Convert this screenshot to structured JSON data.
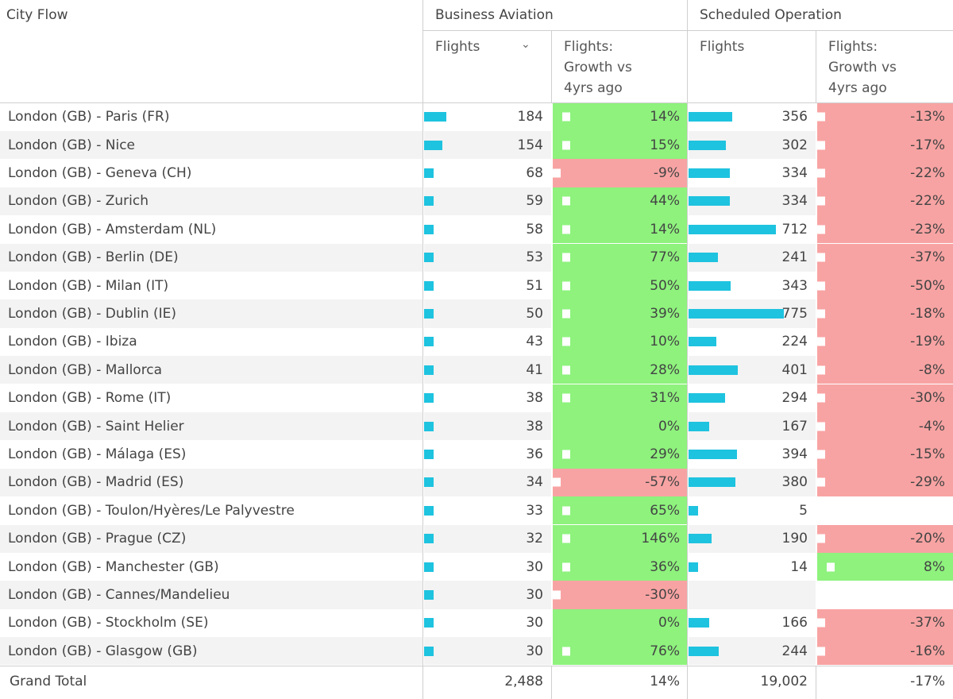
{
  "headers": {
    "city_flow": "City Flow",
    "business_aviation": "Business Aviation",
    "scheduled_operation": "Scheduled Operation",
    "ba_flights": "Flights",
    "ba_growth": "Flights:\nGrowth vs\n4yrs ago",
    "so_flights": "Flights",
    "so_growth": "Flights:\nGrowth vs\n4yrs ago"
  },
  "sort_icon": "chevron-down-icon",
  "colors": {
    "bar": "#1ec3df",
    "positive": "#8ef27d",
    "negative": "#f8a3a3"
  },
  "rows": [
    {
      "city": "London (GB) - Paris (FR)",
      "ba_flights": "184",
      "ba_value": 184,
      "ba_growth": "14%",
      "ba_sign": "pos",
      "so_flights": "356",
      "so_value": 356,
      "so_growth": "-13%",
      "so_sign": "neg"
    },
    {
      "city": "London (GB) - Nice",
      "ba_flights": "154",
      "ba_value": 154,
      "ba_growth": "15%",
      "ba_sign": "pos",
      "so_flights": "302",
      "so_value": 302,
      "so_growth": "-17%",
      "so_sign": "neg"
    },
    {
      "city": "London (GB) - Geneva (CH)",
      "ba_flights": "68",
      "ba_value": 68,
      "ba_growth": "-9%",
      "ba_sign": "neg",
      "so_flights": "334",
      "so_value": 334,
      "so_growth": "-22%",
      "so_sign": "neg"
    },
    {
      "city": "London (GB) - Zurich",
      "ba_flights": "59",
      "ba_value": 59,
      "ba_growth": "44%",
      "ba_sign": "pos",
      "so_flights": "334",
      "so_value": 334,
      "so_growth": "-22%",
      "so_sign": "neg"
    },
    {
      "city": "London (GB) - Amsterdam (NL)",
      "ba_flights": "58",
      "ba_value": 58,
      "ba_growth": "14%",
      "ba_sign": "pos",
      "so_flights": "712",
      "so_value": 712,
      "so_growth": "-23%",
      "so_sign": "neg"
    },
    {
      "city": "London (GB) - Berlin (DE)",
      "ba_flights": "53",
      "ba_value": 53,
      "ba_growth": "77%",
      "ba_sign": "pos",
      "so_flights": "241",
      "so_value": 241,
      "so_growth": "-37%",
      "so_sign": "neg"
    },
    {
      "city": "London (GB) - Milan (IT)",
      "ba_flights": "51",
      "ba_value": 51,
      "ba_growth": "50%",
      "ba_sign": "pos",
      "so_flights": "343",
      "so_value": 343,
      "so_growth": "-50%",
      "so_sign": "neg"
    },
    {
      "city": "London (GB) - Dublin (IE)",
      "ba_flights": "50",
      "ba_value": 50,
      "ba_growth": "39%",
      "ba_sign": "pos",
      "so_flights": "775",
      "so_value": 775,
      "so_growth": "-18%",
      "so_sign": "neg"
    },
    {
      "city": "London (GB) - Ibiza",
      "ba_flights": "43",
      "ba_value": 43,
      "ba_growth": "10%",
      "ba_sign": "pos",
      "so_flights": "224",
      "so_value": 224,
      "so_growth": "-19%",
      "so_sign": "neg"
    },
    {
      "city": "London (GB) - Mallorca",
      "ba_flights": "41",
      "ba_value": 41,
      "ba_growth": "28%",
      "ba_sign": "pos",
      "so_flights": "401",
      "so_value": 401,
      "so_growth": "-8%",
      "so_sign": "neg"
    },
    {
      "city": "London (GB) - Rome (IT)",
      "ba_flights": "38",
      "ba_value": 38,
      "ba_growth": "31%",
      "ba_sign": "pos",
      "so_flights": "294",
      "so_value": 294,
      "so_growth": "-30%",
      "so_sign": "neg"
    },
    {
      "city": "London (GB) - Saint Helier",
      "ba_flights": "38",
      "ba_value": 38,
      "ba_growth": "0%",
      "ba_sign": "pos",
      "so_flights": "167",
      "so_value": 167,
      "so_growth": "-4%",
      "so_sign": "neg"
    },
    {
      "city": "London (GB) - Málaga (ES)",
      "ba_flights": "36",
      "ba_value": 36,
      "ba_growth": "29%",
      "ba_sign": "pos",
      "so_flights": "394",
      "so_value": 394,
      "so_growth": "-15%",
      "so_sign": "neg"
    },
    {
      "city": "London (GB) - Madrid (ES)",
      "ba_flights": "34",
      "ba_value": 34,
      "ba_growth": "-57%",
      "ba_sign": "neg",
      "so_flights": "380",
      "so_value": 380,
      "so_growth": "-29%",
      "so_sign": "neg"
    },
    {
      "city": "London (GB) - Toulon/Hyères/Le Palyvestre",
      "ba_flights": "33",
      "ba_value": 33,
      "ba_growth": "65%",
      "ba_sign": "pos",
      "so_flights": "5",
      "so_value": 5,
      "so_growth": "",
      "so_sign": "none"
    },
    {
      "city": "London (GB) - Prague (CZ)",
      "ba_flights": "32",
      "ba_value": 32,
      "ba_growth": "146%",
      "ba_sign": "pos",
      "so_flights": "190",
      "so_value": 190,
      "so_growth": "-20%",
      "so_sign": "neg"
    },
    {
      "city": "London (GB) - Manchester (GB)",
      "ba_flights": "30",
      "ba_value": 30,
      "ba_growth": "36%",
      "ba_sign": "pos",
      "so_flights": "14",
      "so_value": 14,
      "so_growth": "8%",
      "so_sign": "pos"
    },
    {
      "city": "London (GB) - Cannes/Mandelieu",
      "ba_flights": "30",
      "ba_value": 30,
      "ba_growth": "-30%",
      "ba_sign": "neg",
      "so_flights": "",
      "so_value": 0,
      "so_growth": "",
      "so_sign": "none"
    },
    {
      "city": "London (GB) - Stockholm (SE)",
      "ba_flights": "30",
      "ba_value": 30,
      "ba_growth": "0%",
      "ba_sign": "pos",
      "so_flights": "166",
      "so_value": 166,
      "so_growth": "-37%",
      "so_sign": "neg"
    },
    {
      "city": "London (GB) - Glasgow (GB)",
      "ba_flights": "30",
      "ba_value": 30,
      "ba_growth": "76%",
      "ba_sign": "pos",
      "so_flights": "244",
      "so_value": 244,
      "so_growth": "-16%",
      "so_sign": "neg"
    }
  ],
  "total": {
    "label": "Grand Total",
    "ba_flights": "2,488",
    "ba_growth": "14%",
    "so_flights": "19,002",
    "so_growth": "-17%"
  }
}
